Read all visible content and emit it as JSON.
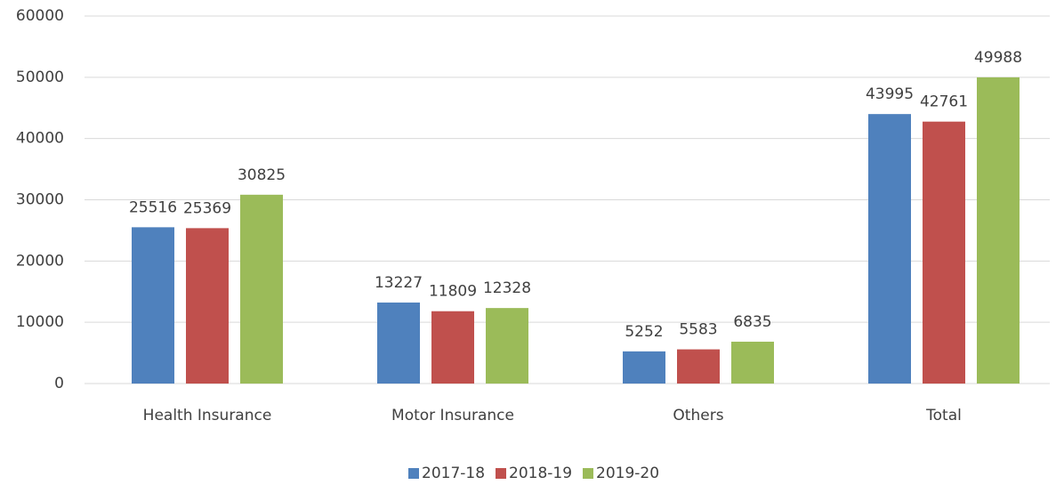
{
  "chart_data": {
    "type": "bar",
    "categories": [
      "Health Insurance",
      "Motor Insurance",
      "Others",
      "Total"
    ],
    "series": [
      {
        "name": "2017-18",
        "color": "#4f81bd",
        "values": [
          25516,
          13227,
          5252,
          43995
        ]
      },
      {
        "name": "2018-19",
        "color": "#c0504d",
        "values": [
          25369,
          11809,
          5583,
          42761
        ]
      },
      {
        "name": "2019-20",
        "color": "#9bbb59",
        "values": [
          30825,
          12328,
          6835,
          49988
        ]
      }
    ],
    "ylim": [
      0,
      60000
    ],
    "yticks": [
      0,
      10000,
      20000,
      30000,
      40000,
      50000,
      60000
    ],
    "grid": true,
    "legend": "bottom"
  }
}
